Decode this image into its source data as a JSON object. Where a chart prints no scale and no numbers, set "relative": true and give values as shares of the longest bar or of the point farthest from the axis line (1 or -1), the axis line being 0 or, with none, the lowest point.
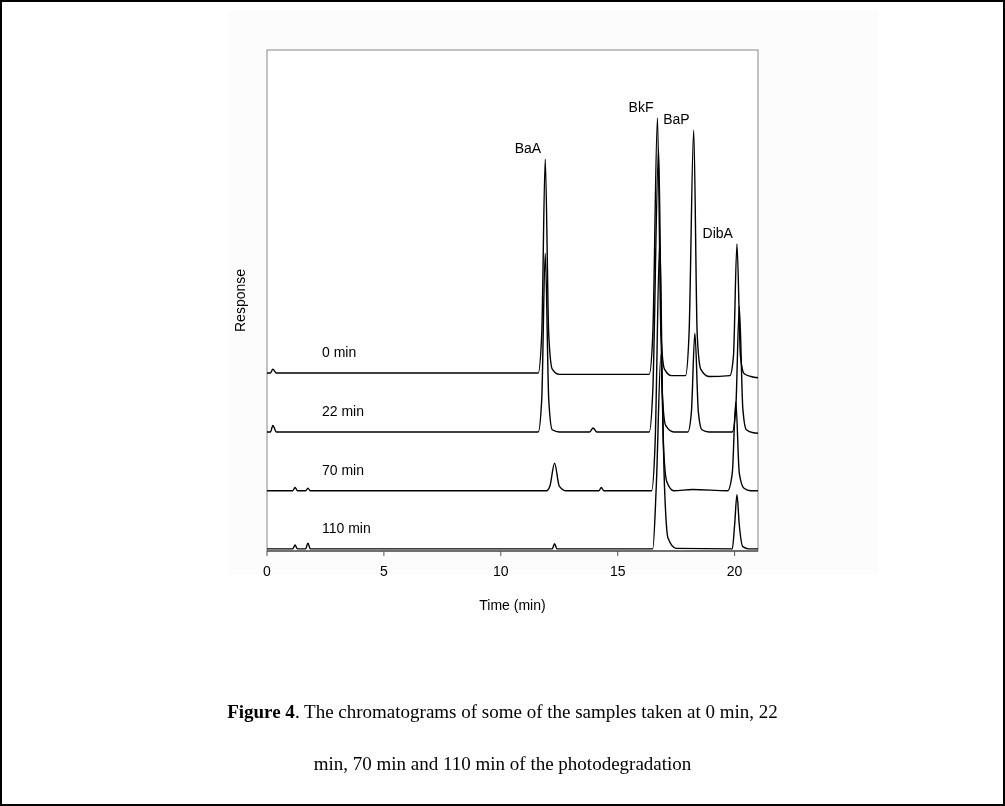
{
  "chart_data": {
    "type": "line",
    "relative": true,
    "xlabel": "Time (min)",
    "ylabel": "Response",
    "xlim": [
      0,
      21
    ],
    "xticks": [
      0,
      5,
      10,
      15,
      20
    ],
    "grid": false,
    "marker": "none",
    "line_style": "solid",
    "series": [
      {
        "name": "0 min",
        "color": "#000000",
        "x": [
          0,
          0.15,
          0.25,
          0.4,
          6,
          11.6,
          11.75,
          11.9,
          12.05,
          12.2,
          12.5,
          16.35,
          16.5,
          16.7,
          16.85,
          17.0,
          17.3,
          17.9,
          18.05,
          18.25,
          18.4,
          18.55,
          18.9,
          19.8,
          19.95,
          20.1,
          20.25,
          20.4,
          20.7,
          21
        ],
        "values": [
          0.411,
          0.411,
          0.42,
          0.411,
          0.411,
          0.411,
          0.5,
          0.905,
          0.5,
          0.42,
          0.408,
          0.408,
          0.5,
          1.0,
          0.5,
          0.42,
          0.405,
          0.405,
          0.5,
          0.972,
          0.5,
          0.42,
          0.403,
          0.405,
          0.45,
          0.709,
          0.45,
          0.41,
          0.403,
          0.4
        ]
      },
      {
        "name": "22 min",
        "color": "#000000",
        "x": [
          0,
          0.15,
          0.25,
          0.4,
          6,
          11.6,
          11.75,
          11.9,
          12.05,
          12.2,
          12.5,
          13.8,
          13.95,
          14.1,
          16.35,
          16.5,
          16.75,
          16.9,
          17.05,
          17.4,
          18.0,
          18.15,
          18.3,
          18.45,
          18.6,
          18.9,
          19.9,
          20.05,
          20.2,
          20.35,
          20.5,
          20.8,
          21
        ],
        "values": [
          0.275,
          0.275,
          0.29,
          0.275,
          0.275,
          0.275,
          0.35,
          0.688,
          0.35,
          0.28,
          0.275,
          0.275,
          0.284,
          0.275,
          0.275,
          0.37,
          0.928,
          0.37,
          0.29,
          0.275,
          0.275,
          0.32,
          0.503,
          0.32,
          0.28,
          0.275,
          0.275,
          0.33,
          0.564,
          0.33,
          0.28,
          0.273,
          0.272
        ]
      },
      {
        "name": "70 min",
        "color": "#000000",
        "x": [
          0,
          1.1,
          1.2,
          1.3,
          1.65,
          1.75,
          1.85,
          6,
          11.95,
          12.1,
          12.3,
          12.5,
          12.8,
          14.2,
          14.3,
          14.4,
          16.45,
          16.6,
          16.8,
          16.95,
          17.1,
          17.4,
          18.2,
          19.7,
          19.9,
          20.05,
          20.2,
          20.4,
          20.7,
          21
        ],
        "values": [
          0.139,
          0.139,
          0.147,
          0.139,
          0.139,
          0.145,
          0.139,
          0.139,
          0.139,
          0.15,
          0.203,
          0.15,
          0.139,
          0.139,
          0.147,
          0.139,
          0.139,
          0.25,
          0.716,
          0.25,
          0.16,
          0.139,
          0.142,
          0.139,
          0.18,
          0.344,
          0.18,
          0.145,
          0.139,
          0.139
        ]
      },
      {
        "name": "110 min",
        "color": "#000000",
        "x": [
          0,
          1.1,
          1.2,
          1.3,
          1.65,
          1.75,
          1.85,
          6,
          12.2,
          12.3,
          12.4,
          16.5,
          16.65,
          16.85,
          17.0,
          17.15,
          17.5,
          19.9,
          20.0,
          20.1,
          20.2,
          20.35,
          20.6,
          21
        ],
        "values": [
          0.005,
          0.005,
          0.014,
          0.005,
          0.005,
          0.018,
          0.005,
          0.005,
          0.005,
          0.017,
          0.005,
          0.005,
          0.15,
          0.453,
          0.15,
          0.03,
          0.006,
          0.005,
          0.06,
          0.13,
          0.06,
          0.01,
          0.005,
          0.005
        ]
      }
    ],
    "annotations": [
      {
        "text": "BaA",
        "x": 11.9,
        "y": 0.905
      },
      {
        "text": "BkF",
        "x": 16.7,
        "y": 1.0
      },
      {
        "text": "BaP",
        "x": 18.25,
        "y": 0.972
      },
      {
        "text": "DibA",
        "x": 20.1,
        "y": 0.709
      },
      "Figure 4. The chromatograms of some of the samples taken at 0 min, 22 min, 70 min and 110 min of the photodegradation"
    ]
  }
}
